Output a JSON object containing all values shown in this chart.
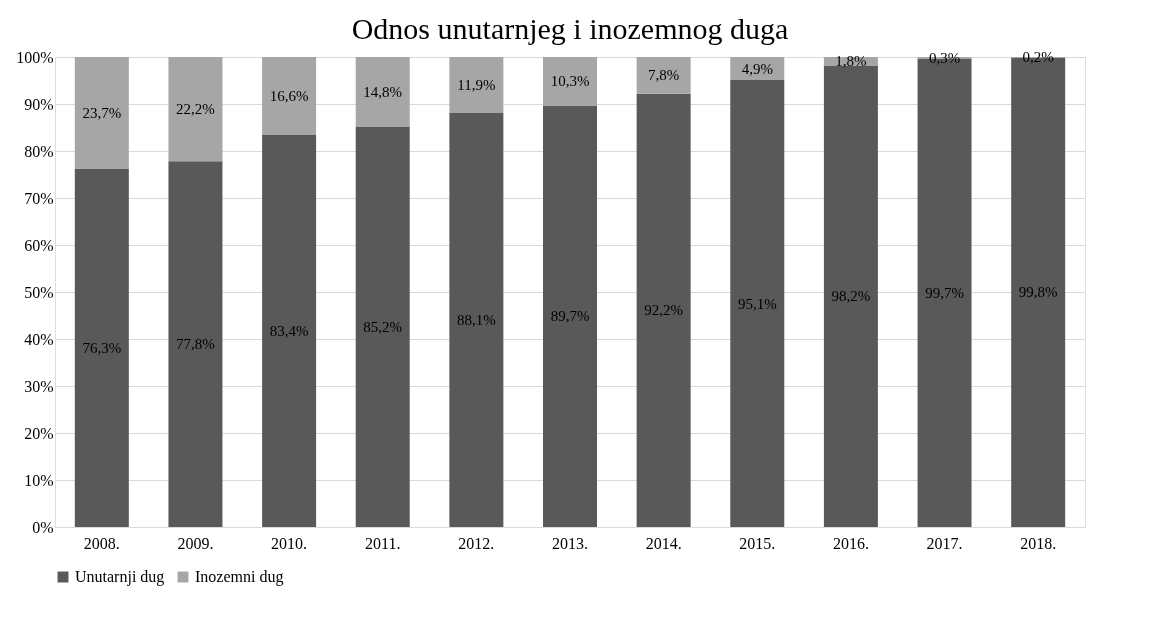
{
  "chart_data": {
    "type": "bar",
    "title": "Odnos unutarnjeg i inozemnog duga",
    "categories": [
      "2008.",
      "2009.",
      "2010.",
      "2011.",
      "2012.",
      "2013.",
      "2014.",
      "2015.",
      "2016.",
      "2017.",
      "2018."
    ],
    "stacked": true,
    "series": [
      {
        "name": "Unutarnji dug",
        "color": "#595959",
        "values": [
          76.3,
          77.8,
          83.4,
          85.2,
          88.1,
          89.7,
          92.2,
          95.1,
          98.2,
          99.7,
          99.8
        ],
        "value_labels": [
          "76,3%",
          "77,8%",
          "83,4%",
          "85,2%",
          "88,1%",
          "89,7%",
          "92,2%",
          "95,1%",
          "98,2%",
          "99,7%",
          "99,8%"
        ]
      },
      {
        "name": "Inozemni dug",
        "color": "#a6a6a6",
        "values": [
          23.7,
          22.2,
          16.6,
          14.8,
          11.9,
          10.3,
          7.8,
          4.9,
          1.8,
          0.3,
          0.2
        ],
        "value_labels": [
          "23,7%",
          "22,2%",
          "16,6%",
          "14,8%",
          "11,9%",
          "10,3%",
          "7,8%",
          "4,9%",
          "1,8%",
          "0,3%",
          "0,2%"
        ]
      }
    ],
    "ylim": [
      0,
      100
    ],
    "yticks": [
      {
        "value": 0,
        "label": "0%"
      },
      {
        "value": 10,
        "label": "10%"
      },
      {
        "value": 20,
        "label": "20%"
      },
      {
        "value": 30,
        "label": "30%"
      },
      {
        "value": 40,
        "label": "40%"
      },
      {
        "value": 50,
        "label": "50%"
      },
      {
        "value": 60,
        "label": "60%"
      },
      {
        "value": 70,
        "label": "70%"
      },
      {
        "value": 80,
        "label": "80%"
      },
      {
        "value": 90,
        "label": "90%"
      },
      {
        "value": 100,
        "label": "100%"
      }
    ],
    "grid": "y",
    "legend": "bottom"
  }
}
